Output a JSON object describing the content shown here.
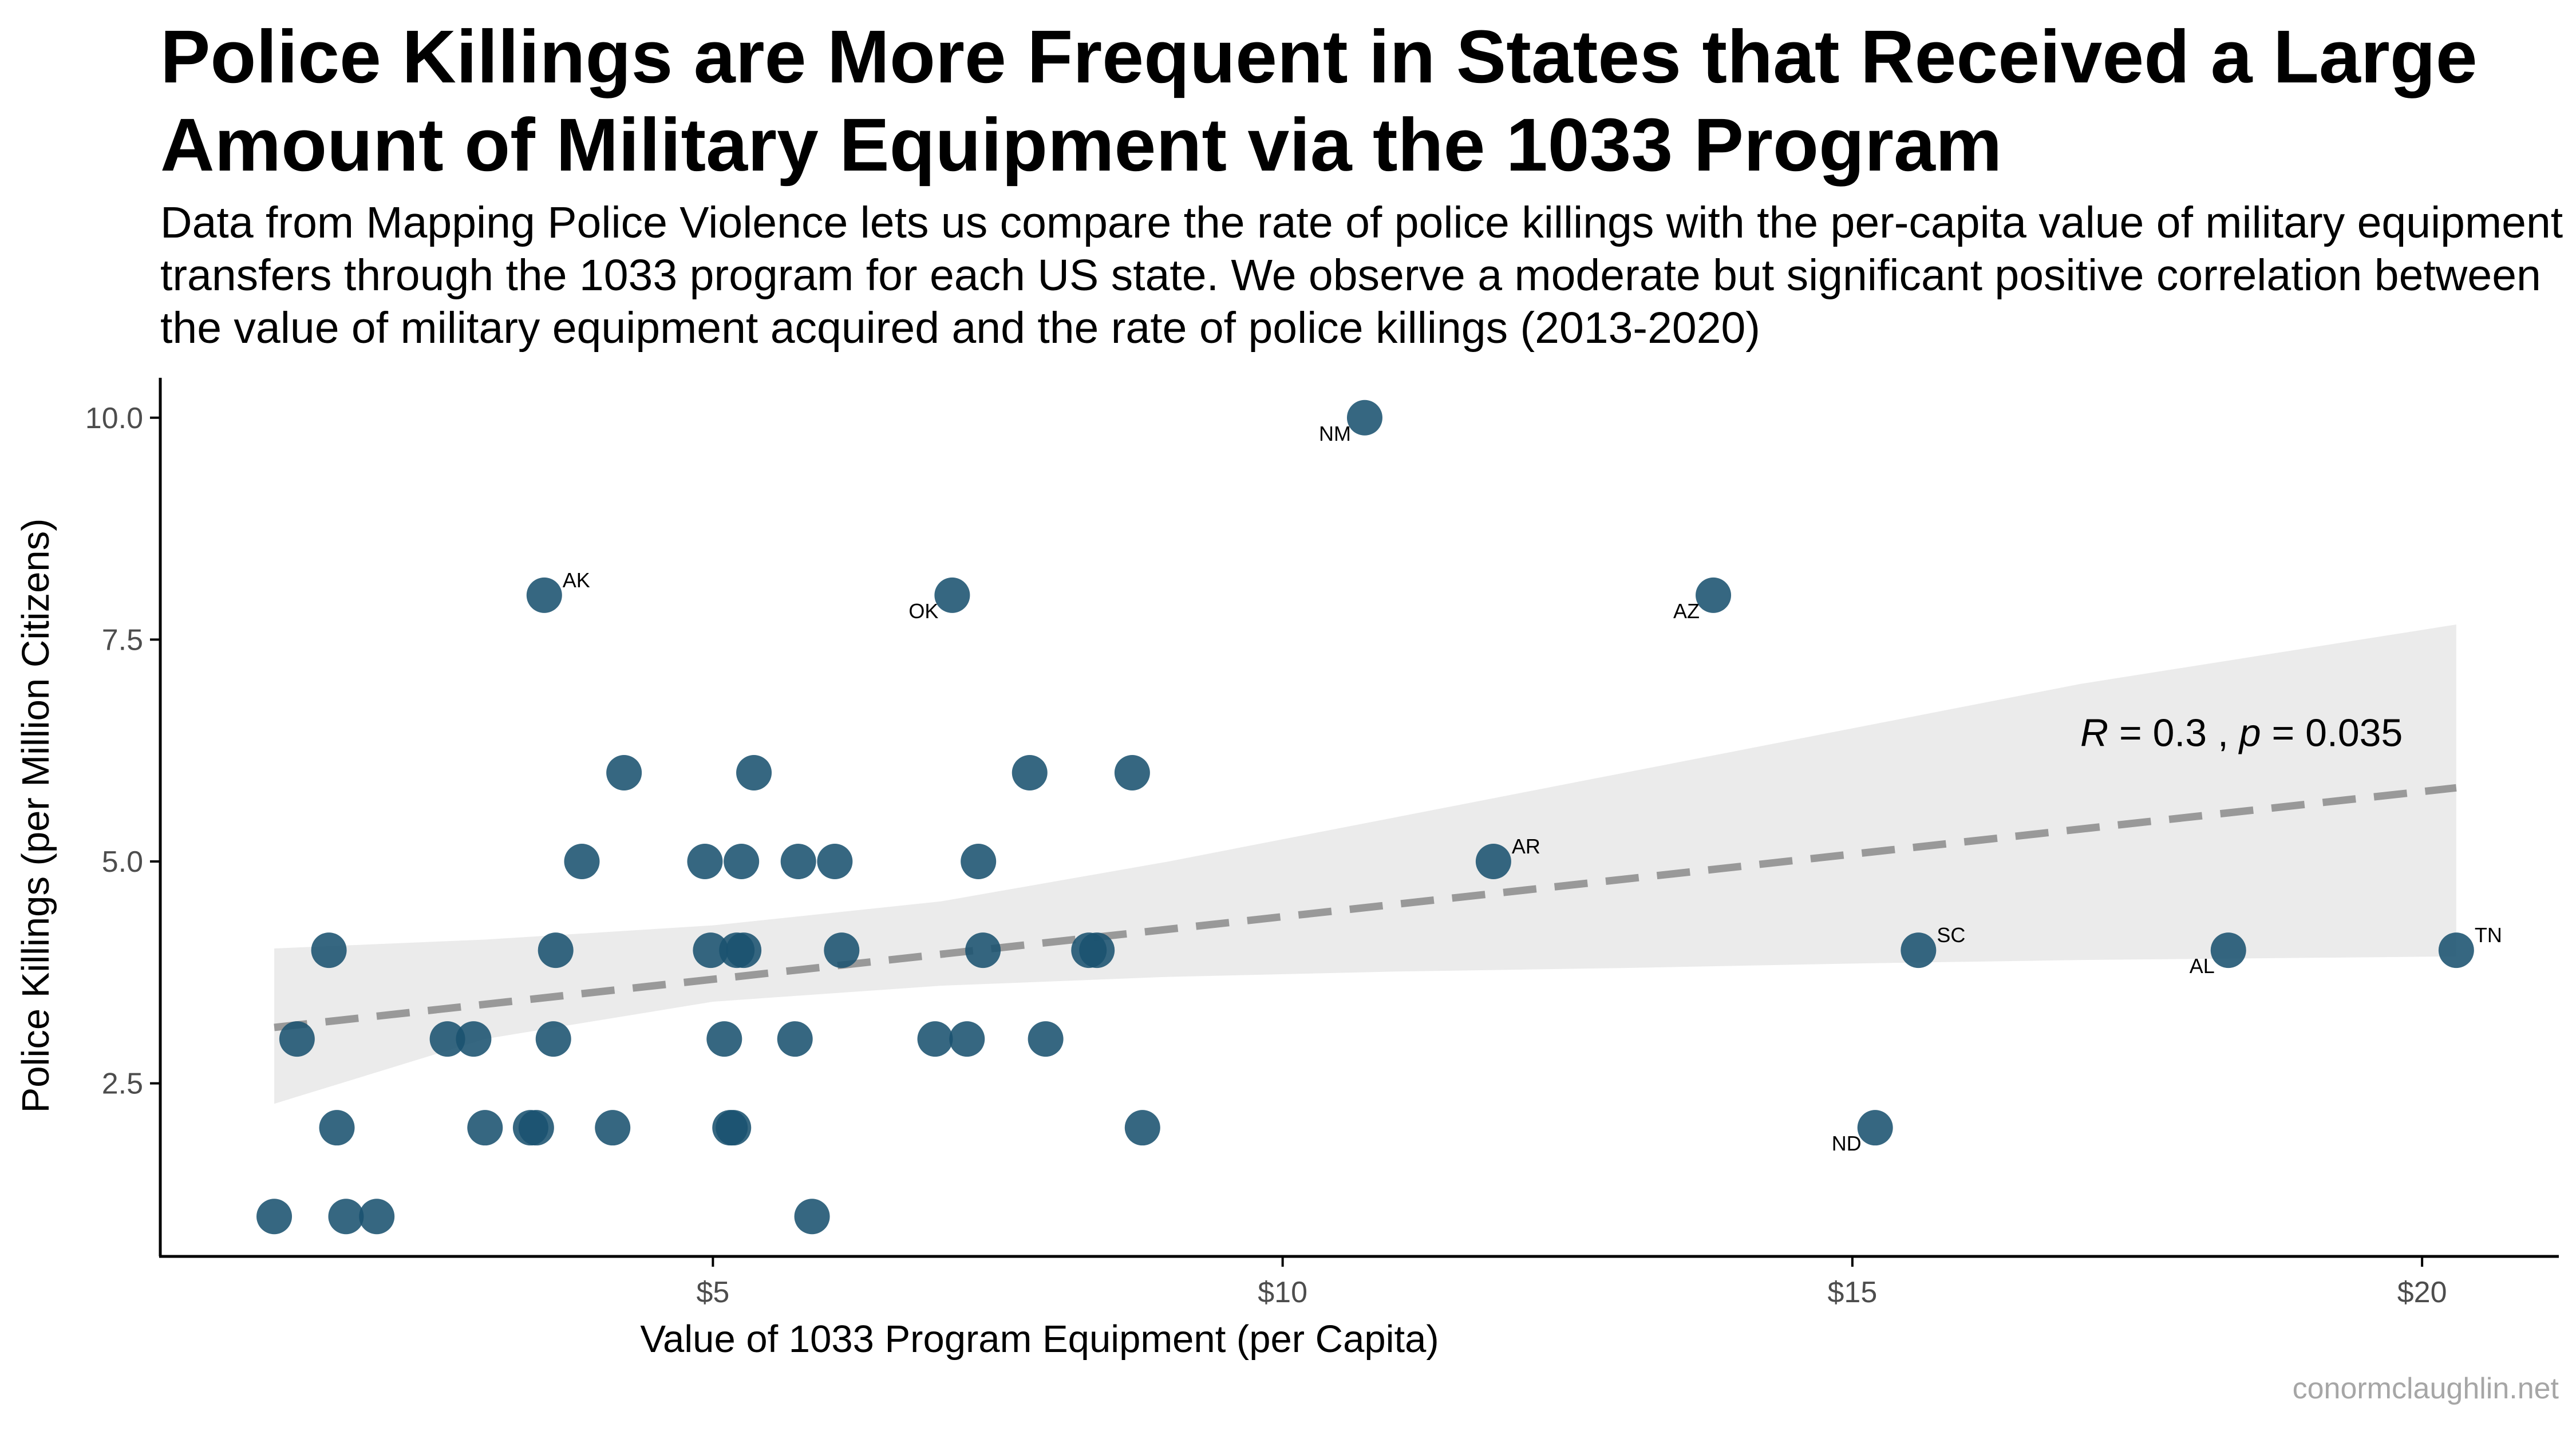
{
  "title": "Police Killings are More Frequent in States that Received a Large Amount of Military Equipment via the 1033 Program",
  "subtitle": "Data from Mapping Police Violence lets us compare the rate of police killings with the per-capita value of military equipment transfers through the 1033 program for each US state. We observe a moderate but significant positive correlation between the value of military equipment acquired and the rate of police killings (2013-2020)",
  "caption": "conormclaughlin.net",
  "colors": {
    "point": "#1a5270",
    "trend": "#999999",
    "ribbon": "#ebebeb",
    "axis": "#000000"
  },
  "chart_data": {
    "type": "scatter",
    "xlabel": "Value of 1033 Program Equipment (per Capita)",
    "ylabel": "Police Killings (per Million Citizens)",
    "xlim": [
      0.15,
      21.2
    ],
    "ylim": [
      0.55,
      10.45
    ],
    "x_ticks": [
      {
        "value": 5,
        "label": "$5"
      },
      {
        "value": 10,
        "label": "$10"
      },
      {
        "value": 15,
        "label": "$15"
      },
      {
        "value": 20,
        "label": "$20"
      }
    ],
    "y_ticks": [
      {
        "value": 2.5,
        "label": "2.5"
      },
      {
        "value": 5.0,
        "label": "5.0"
      },
      {
        "value": 7.5,
        "label": "7.5"
      },
      {
        "value": 10.0,
        "label": "10.0"
      }
    ],
    "grid": false,
    "points": [
      {
        "x": 1.15,
        "y": 1
      },
      {
        "x": 1.35,
        "y": 3
      },
      {
        "x": 1.63,
        "y": 4
      },
      {
        "x": 1.7,
        "y": 2
      },
      {
        "x": 1.78,
        "y": 1
      },
      {
        "x": 2.05,
        "y": 1
      },
      {
        "x": 2.67,
        "y": 3
      },
      {
        "x": 2.9,
        "y": 3
      },
      {
        "x": 3.0,
        "y": 2
      },
      {
        "x": 3.4,
        "y": 2
      },
      {
        "x": 3.45,
        "y": 2
      },
      {
        "x": 3.52,
        "y": 8,
        "label": "AK",
        "label_side": "right"
      },
      {
        "x": 3.6,
        "y": 3
      },
      {
        "x": 3.62,
        "y": 4
      },
      {
        "x": 3.85,
        "y": 5
      },
      {
        "x": 4.12,
        "y": 2
      },
      {
        "x": 4.22,
        "y": 6
      },
      {
        "x": 4.93,
        "y": 5
      },
      {
        "x": 4.98,
        "y": 4
      },
      {
        "x": 5.1,
        "y": 3
      },
      {
        "x": 5.15,
        "y": 2
      },
      {
        "x": 5.18,
        "y": 2
      },
      {
        "x": 5.21,
        "y": 4
      },
      {
        "x": 5.25,
        "y": 5
      },
      {
        "x": 5.27,
        "y": 4
      },
      {
        "x": 5.36,
        "y": 6
      },
      {
        "x": 5.72,
        "y": 3
      },
      {
        "x": 5.75,
        "y": 5
      },
      {
        "x": 5.87,
        "y": 1
      },
      {
        "x": 6.07,
        "y": 5
      },
      {
        "x": 6.13,
        "y": 4
      },
      {
        "x": 6.95,
        "y": 3
      },
      {
        "x": 7.1,
        "y": 8,
        "label": "OK",
        "label_side": "left"
      },
      {
        "x": 7.23,
        "y": 3
      },
      {
        "x": 7.33,
        "y": 5
      },
      {
        "x": 7.37,
        "y": 4
      },
      {
        "x": 7.78,
        "y": 6
      },
      {
        "x": 7.92,
        "y": 3
      },
      {
        "x": 8.3,
        "y": 4
      },
      {
        "x": 8.37,
        "y": 4
      },
      {
        "x": 8.68,
        "y": 6
      },
      {
        "x": 8.77,
        "y": 2
      },
      {
        "x": 10.72,
        "y": 10,
        "label": "NM",
        "label_side": "left"
      },
      {
        "x": 11.85,
        "y": 5,
        "label": "AR",
        "label_side": "right"
      },
      {
        "x": 13.78,
        "y": 8,
        "label": "AZ",
        "label_side": "left"
      },
      {
        "x": 15.2,
        "y": 2,
        "label": "ND",
        "label_side": "left"
      },
      {
        "x": 15.58,
        "y": 4,
        "label": "SC",
        "label_side": "right"
      },
      {
        "x": 18.3,
        "y": 4,
        "label": "AL",
        "label_side": "left"
      },
      {
        "x": 20.3,
        "y": 4,
        "label": "TN",
        "label_side": "right"
      }
    ],
    "trend_line": {
      "x": [
        1.15,
        20.3
      ],
      "y": [
        3.13,
        5.83
      ],
      "style": "dashed",
      "ribbon_x": [
        1.15,
        3,
        5,
        7,
        9,
        11,
        13,
        15,
        17,
        20.3
      ],
      "ribbon_upper": [
        4.02,
        4.12,
        4.28,
        4.55,
        5.0,
        5.5,
        6.0,
        6.5,
        7.0,
        7.67
      ],
      "ribbon_lower": [
        2.27,
        3.0,
        3.42,
        3.6,
        3.7,
        3.76,
        3.8,
        3.85,
        3.89,
        3.93
      ]
    },
    "annotation": {
      "R": "0.3",
      "p": "0.035",
      "x": 17,
      "y": 6.3
    }
  }
}
